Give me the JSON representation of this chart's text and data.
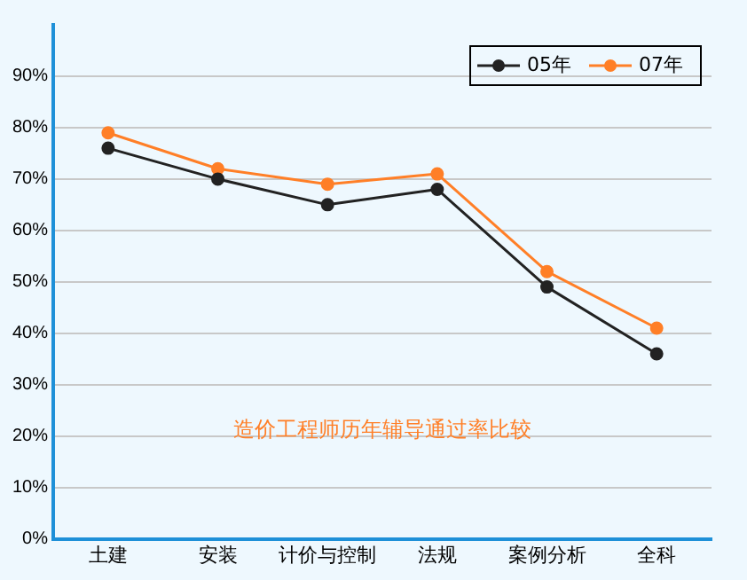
{
  "chart_data": {
    "type": "line",
    "categories": [
      "土建",
      "安装",
      "计价与控制",
      "法规",
      "案例分析",
      "全科"
    ],
    "series": [
      {
        "name": "05年",
        "color": "#222222",
        "values": [
          76,
          70,
          65,
          68,
          49,
          36
        ]
      },
      {
        "name": "07年",
        "color": "#ff7f27",
        "values": [
          79,
          72,
          69,
          71,
          52,
          41
        ]
      }
    ],
    "ylim": [
      0,
      100
    ],
    "yticks": [
      {
        "value": 0,
        "label": "0%"
      },
      {
        "value": 10,
        "label": "10%"
      },
      {
        "value": 20,
        "label": "20%"
      },
      {
        "value": 30,
        "label": "30%"
      },
      {
        "value": 40,
        "label": "40%"
      },
      {
        "value": 50,
        "label": "50%"
      },
      {
        "value": 60,
        "label": "60%"
      },
      {
        "value": 70,
        "label": "70%"
      },
      {
        "value": 80,
        "label": "80%"
      },
      {
        "value": 90,
        "label": "90%"
      }
    ],
    "grid": "y",
    "legend": "top right",
    "marker": "circle",
    "line_style": "solid",
    "annotations": [
      {
        "text": "造价工程师历年辅导通过率比较"
      }
    ]
  }
}
